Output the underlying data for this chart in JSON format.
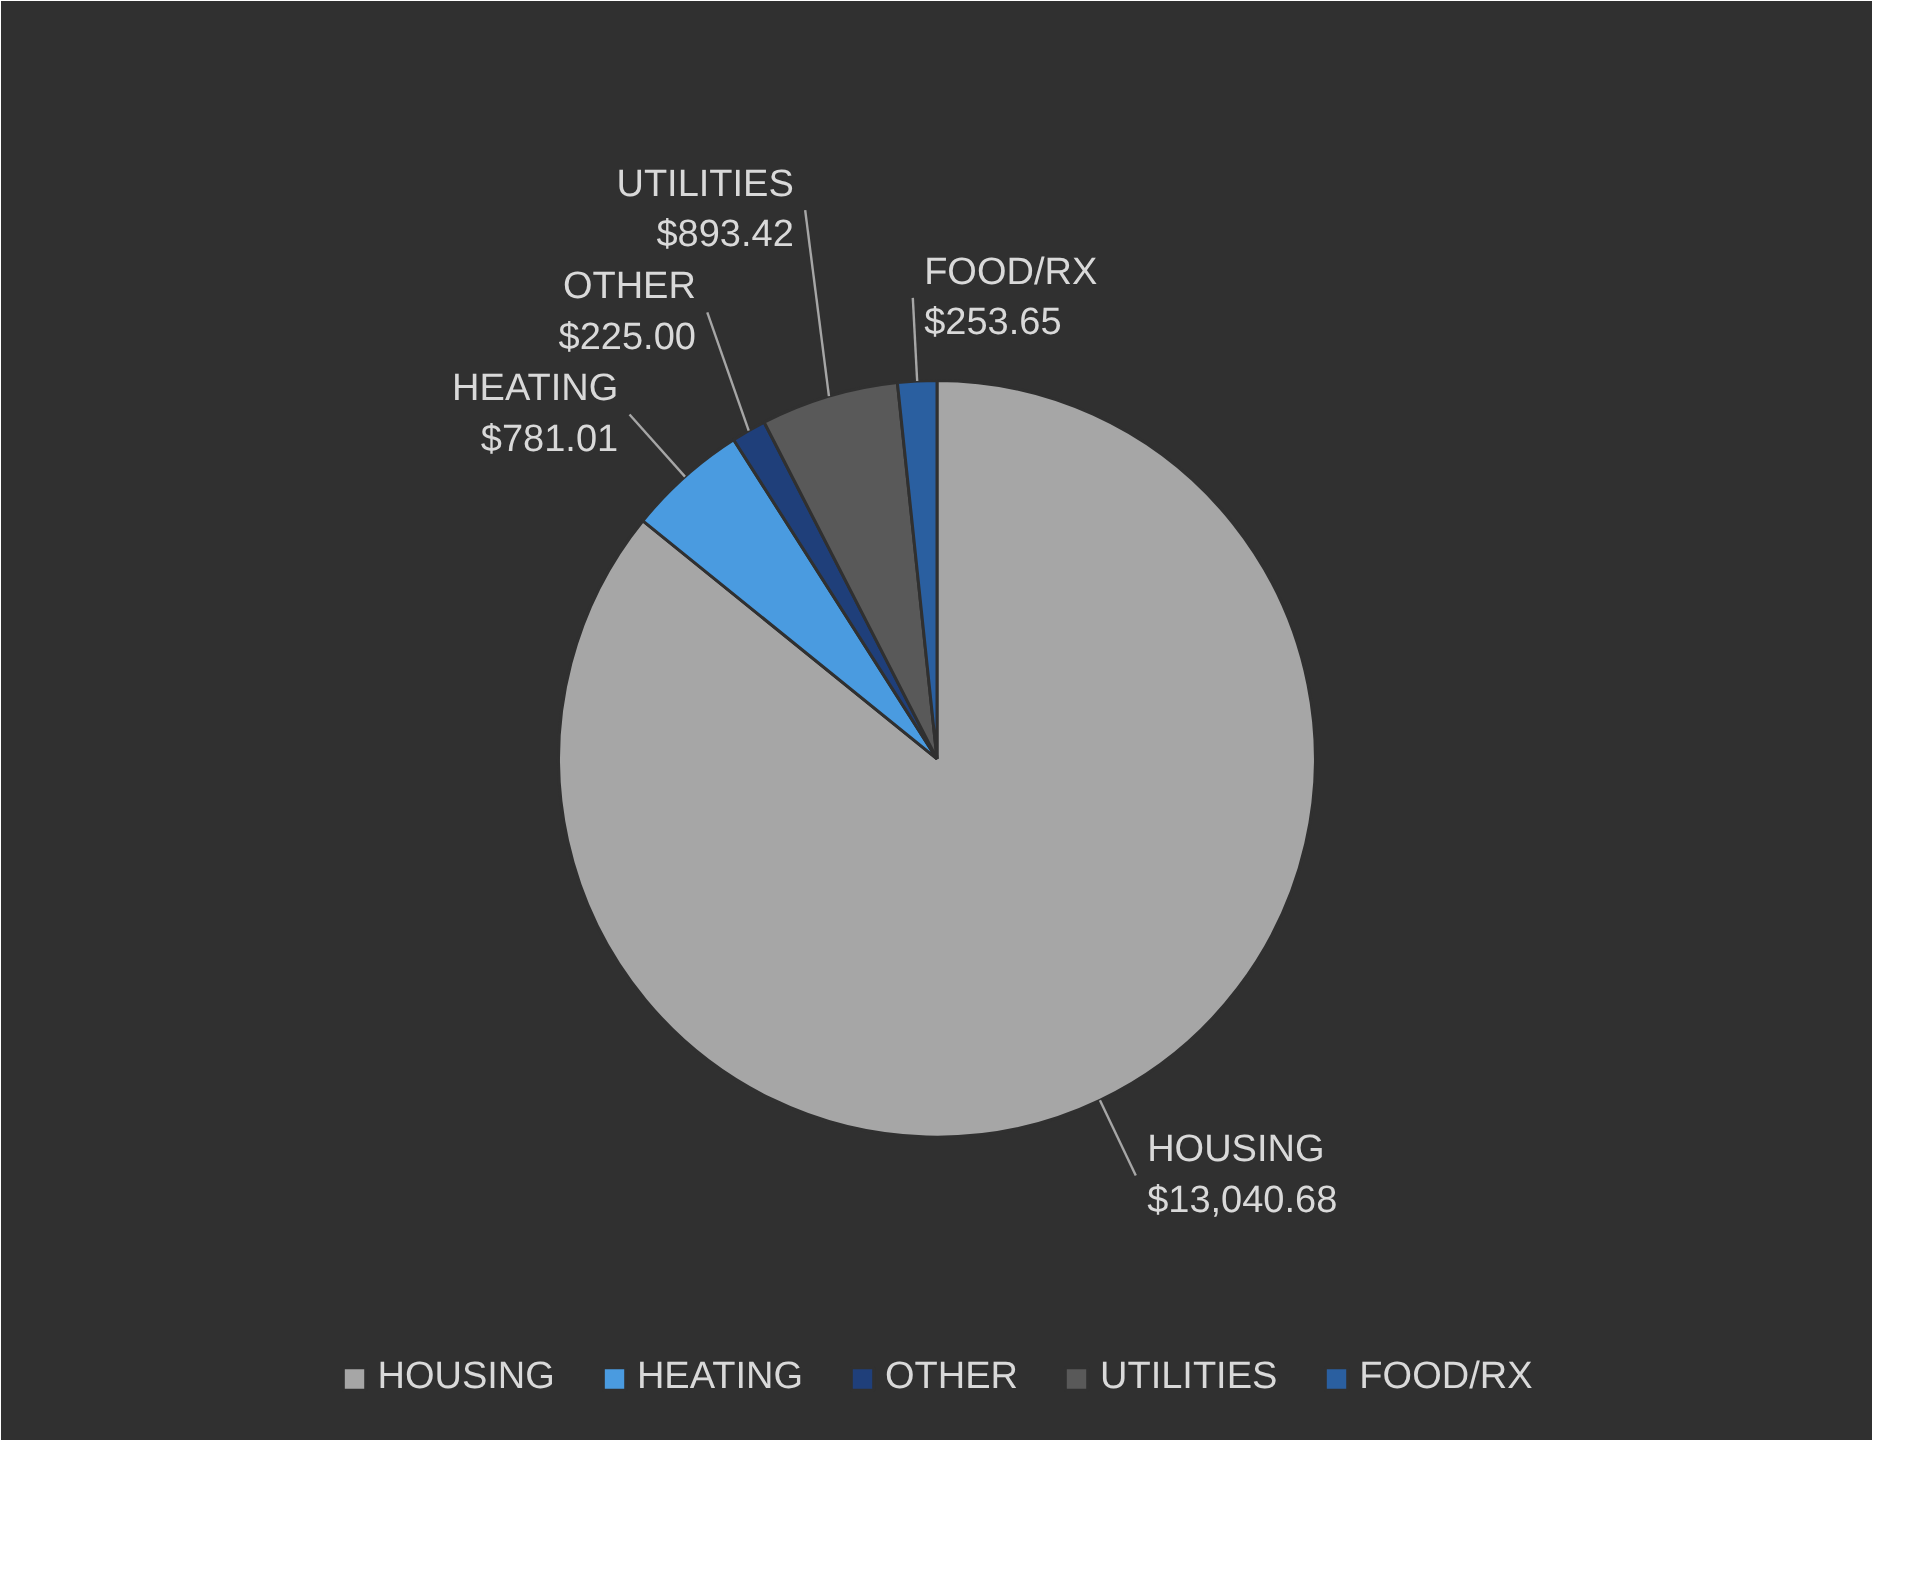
{
  "chart_data": {
    "type": "pie",
    "categories": [
      "HOUSING",
      "HEATING",
      "OTHER",
      "UTILITIES",
      "FOOD/RX"
    ],
    "values": [
      13040.68,
      781.01,
      225.0,
      893.42,
      253.65
    ],
    "value_labels": [
      "$13,040.68",
      "$781.01",
      "$225.00",
      "$893.42",
      "$253.65"
    ],
    "colors": [
      "#a6a6a6",
      "#4a9be0",
      "#1f3f7a",
      "#595959",
      "#2a5fa0"
    ],
    "legend": "bottom"
  }
}
